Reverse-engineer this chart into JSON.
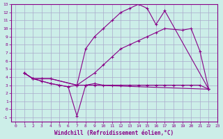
{
  "xlabel": "Windchill (Refroidissement éolien,°C)",
  "background_color": "#cceee8",
  "grid_color": "#aaaacc",
  "line_color": "#880088",
  "xlim": [
    -0.5,
    23
  ],
  "ylim": [
    -1.5,
    13
  ],
  "xticks": [
    0,
    1,
    2,
    3,
    4,
    5,
    6,
    7,
    8,
    9,
    10,
    11,
    12,
    13,
    14,
    15,
    16,
    17,
    18,
    19,
    20,
    21,
    22,
    23
  ],
  "yticks": [
    -1,
    0,
    1,
    2,
    3,
    4,
    5,
    6,
    7,
    8,
    9,
    10,
    11,
    12,
    13
  ],
  "series": [
    {
      "x": [
        1,
        2,
        3,
        4,
        7,
        8,
        9,
        10,
        11,
        12,
        13,
        14,
        15,
        16,
        17,
        22
      ],
      "y": [
        4.5,
        3.8,
        3.8,
        3.8,
        3.0,
        7.5,
        9.0,
        10.0,
        11.0,
        12.0,
        12.5,
        13.0,
        12.5,
        10.5,
        12.2,
        2.5
      ]
    },
    {
      "x": [
        1,
        2,
        3,
        4,
        7,
        9,
        10,
        11,
        12,
        13,
        14,
        15,
        16,
        17,
        19,
        20,
        21,
        22
      ],
      "y": [
        4.5,
        3.8,
        3.8,
        3.8,
        3.0,
        4.5,
        5.5,
        6.5,
        7.5,
        8.0,
        8.5,
        9.0,
        9.5,
        10.0,
        9.8,
        10.0,
        7.2,
        2.5
      ]
    },
    {
      "x": [
        1,
        2,
        3,
        4,
        5,
        6,
        7,
        8,
        9,
        10,
        11,
        12,
        13,
        14,
        15,
        16,
        17,
        18,
        19,
        20,
        21,
        22
      ],
      "y": [
        4.5,
        3.8,
        3.5,
        3.2,
        3.0,
        2.8,
        -0.8,
        3.0,
        3.2,
        3.0,
        3.0,
        3.0,
        3.0,
        3.0,
        3.0,
        3.0,
        3.0,
        3.0,
        3.0,
        3.0,
        3.0,
        2.5
      ]
    },
    {
      "x": [
        1,
        2,
        3,
        4,
        5,
        6,
        7,
        8,
        9,
        22
      ],
      "y": [
        4.5,
        3.8,
        3.5,
        3.2,
        3.0,
        2.8,
        3.0,
        3.0,
        3.0,
        2.5
      ]
    }
  ]
}
